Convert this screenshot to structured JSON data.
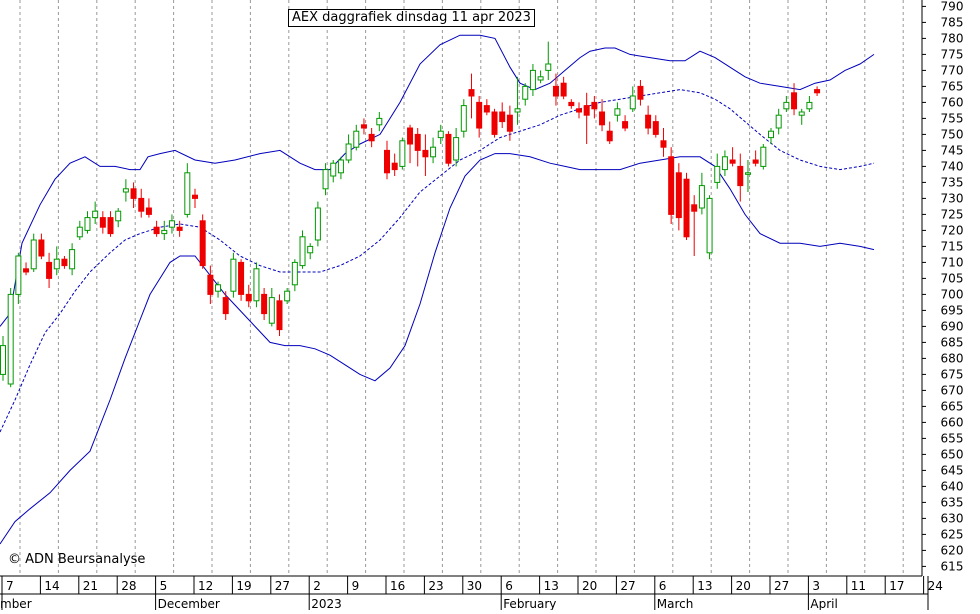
{
  "chart_data": {
    "type": "candlestick",
    "title": "AEX daggrafiek dinsdag 11 apr 2023",
    "copyright": "© ADN Beursanalyse",
    "ylim": [
      612,
      792
    ],
    "y_ticks": [
      615,
      620,
      625,
      630,
      635,
      640,
      645,
      650,
      655,
      660,
      665,
      670,
      675,
      680,
      685,
      690,
      695,
      700,
      705,
      710,
      715,
      720,
      725,
      730,
      735,
      740,
      745,
      750,
      755,
      760,
      765,
      770,
      775,
      780,
      785,
      790
    ],
    "x_day_ticks": [
      "7",
      "14",
      "21",
      "28",
      "5",
      "12",
      "19",
      "27",
      "2",
      "9",
      "16",
      "23",
      "30",
      "6",
      "13",
      "20",
      "27",
      "6",
      "13",
      "20",
      "27",
      "3",
      "11",
      "17",
      "24"
    ],
    "month_labels": [
      {
        "label": "mber",
        "tick_index": 0
      },
      {
        "label": "December",
        "tick_index": 4
      },
      {
        "label": "2023",
        "tick_index": 8
      },
      {
        "label": "February",
        "tick_index": 13
      },
      {
        "label": "March",
        "tick_index": 17
      },
      {
        "label": "April",
        "tick_index": 21
      }
    ],
    "up_color": "#009900",
    "down_color": "#ee0000",
    "band_color": "#0000bb",
    "candles": [
      {
        "o": 675,
        "h": 687,
        "l": 673,
        "c": 684
      },
      {
        "o": 672,
        "h": 702,
        "l": 671,
        "c": 700
      },
      {
        "o": 700,
        "h": 713,
        "l": 697,
        "c": 712
      },
      {
        "o": 708,
        "h": 710,
        "l": 706,
        "c": 707
      },
      {
        "o": 708,
        "h": 719,
        "l": 707,
        "c": 717
      },
      {
        "o": 717,
        "h": 719,
        "l": 711,
        "c": 712
      },
      {
        "o": 710,
        "h": 713,
        "l": 702,
        "c": 705
      },
      {
        "o": 708,
        "h": 715,
        "l": 706,
        "c": 711
      },
      {
        "o": 711,
        "h": 712,
        "l": 708,
        "c": 709
      },
      {
        "o": 708,
        "h": 716,
        "l": 706,
        "c": 714
      },
      {
        "o": 718,
        "h": 723,
        "l": 717,
        "c": 721
      },
      {
        "o": 720,
        "h": 726,
        "l": 719,
        "c": 724
      },
      {
        "o": 724,
        "h": 729,
        "l": 722,
        "c": 726
      },
      {
        "o": 724,
        "h": 726,
        "l": 719,
        "c": 721
      },
      {
        "o": 724,
        "h": 726,
        "l": 718,
        "c": 719
      },
      {
        "o": 723,
        "h": 727,
        "l": 721,
        "c": 726
      },
      {
        "o": 732,
        "h": 736,
        "l": 729,
        "c": 733
      },
      {
        "o": 733,
        "h": 735,
        "l": 727,
        "c": 730
      },
      {
        "o": 730,
        "h": 733,
        "l": 724,
        "c": 726
      },
      {
        "o": 727,
        "h": 730,
        "l": 724,
        "c": 725
      },
      {
        "o": 721,
        "h": 723,
        "l": 718,
        "c": 719
      },
      {
        "o": 719,
        "h": 723,
        "l": 717,
        "c": 720
      },
      {
        "o": 721,
        "h": 725,
        "l": 719,
        "c": 723
      },
      {
        "o": 721,
        "h": 723,
        "l": 718,
        "c": 720
      },
      {
        "o": 725,
        "h": 741,
        "l": 724,
        "c": 738
      },
      {
        "o": 731,
        "h": 733,
        "l": 727,
        "c": 730
      },
      {
        "o": 723,
        "h": 725,
        "l": 708,
        "c": 709
      },
      {
        "o": 706,
        "h": 709,
        "l": 697,
        "c": 700
      },
      {
        "o": 701,
        "h": 704,
        "l": 699,
        "c": 703
      },
      {
        "o": 699,
        "h": 701,
        "l": 692,
        "c": 694
      },
      {
        "o": 701,
        "h": 713,
        "l": 699,
        "c": 711
      },
      {
        "o": 710,
        "h": 711,
        "l": 698,
        "c": 700
      },
      {
        "o": 700,
        "h": 703,
        "l": 696,
        "c": 698
      },
      {
        "o": 698,
        "h": 710,
        "l": 696,
        "c": 708
      },
      {
        "o": 700,
        "h": 702,
        "l": 692,
        "c": 694
      },
      {
        "o": 691,
        "h": 702,
        "l": 690,
        "c": 699
      },
      {
        "o": 698,
        "h": 700,
        "l": 687,
        "c": 689
      },
      {
        "o": 698,
        "h": 702,
        "l": 697,
        "c": 701
      },
      {
        "o": 703,
        "h": 711,
        "l": 701,
        "c": 710
      },
      {
        "o": 709,
        "h": 720,
        "l": 708,
        "c": 718
      },
      {
        "o": 713,
        "h": 716,
        "l": 711,
        "c": 715
      },
      {
        "o": 717,
        "h": 729,
        "l": 715,
        "c": 727
      },
      {
        "o": 733,
        "h": 741,
        "l": 731,
        "c": 739
      },
      {
        "o": 737,
        "h": 742,
        "l": 735,
        "c": 741
      },
      {
        "o": 738,
        "h": 743,
        "l": 736,
        "c": 742
      },
      {
        "o": 742,
        "h": 750,
        "l": 741,
        "c": 747
      },
      {
        "o": 746,
        "h": 753,
        "l": 745,
        "c": 751
      },
      {
        "o": 753,
        "h": 755,
        "l": 750,
        "c": 752
      },
      {
        "o": 750,
        "h": 752,
        "l": 746,
        "c": 748
      },
      {
        "o": 753,
        "h": 757,
        "l": 751,
        "c": 755
      },
      {
        "o": 745,
        "h": 748,
        "l": 736,
        "c": 738
      },
      {
        "o": 741,
        "h": 744,
        "l": 737,
        "c": 739
      },
      {
        "o": 740,
        "h": 749,
        "l": 739,
        "c": 748
      },
      {
        "o": 752,
        "h": 753,
        "l": 741,
        "c": 747
      },
      {
        "o": 750,
        "h": 752,
        "l": 740,
        "c": 745
      },
      {
        "o": 745,
        "h": 750,
        "l": 737,
        "c": 743
      },
      {
        "o": 743,
        "h": 749,
        "l": 741,
        "c": 746
      },
      {
        "o": 749,
        "h": 753,
        "l": 747,
        "c": 751
      },
      {
        "o": 750,
        "h": 751,
        "l": 740,
        "c": 741
      },
      {
        "o": 742,
        "h": 752,
        "l": 740,
        "c": 749
      },
      {
        "o": 751,
        "h": 761,
        "l": 749,
        "c": 759
      },
      {
        "o": 764,
        "h": 769,
        "l": 755,
        "c": 762
      },
      {
        "o": 760,
        "h": 762,
        "l": 749,
        "c": 752
      },
      {
        "o": 759,
        "h": 761,
        "l": 756,
        "c": 757
      },
      {
        "o": 757,
        "h": 758,
        "l": 749,
        "c": 750
      },
      {
        "o": 757,
        "h": 760,
        "l": 752,
        "c": 754
      },
      {
        "o": 756,
        "h": 759,
        "l": 748,
        "c": 751
      },
      {
        "o": 757,
        "h": 768,
        "l": 753,
        "c": 758
      },
      {
        "o": 761,
        "h": 766,
        "l": 759,
        "c": 765
      },
      {
        "o": 764,
        "h": 772,
        "l": 762,
        "c": 770
      },
      {
        "o": 767,
        "h": 770,
        "l": 766,
        "c": 768
      },
      {
        "o": 770,
        "h": 779,
        "l": 767,
        "c": 772
      },
      {
        "o": 765,
        "h": 769,
        "l": 759,
        "c": 762
      },
      {
        "o": 766,
        "h": 768,
        "l": 761,
        "c": 762
      },
      {
        "o": 760,
        "h": 761,
        "l": 758,
        "c": 759
      },
      {
        "o": 758,
        "h": 760,
        "l": 755,
        "c": 757
      },
      {
        "o": 759,
        "h": 763,
        "l": 747,
        "c": 756
      },
      {
        "o": 760,
        "h": 762,
        "l": 755,
        "c": 758
      },
      {
        "o": 757,
        "h": 761,
        "l": 751,
        "c": 753
      },
      {
        "o": 751,
        "h": 754,
        "l": 747,
        "c": 748
      },
      {
        "o": 756,
        "h": 760,
        "l": 754,
        "c": 758
      },
      {
        "o": 754,
        "h": 756,
        "l": 751,
        "c": 752
      },
      {
        "o": 758,
        "h": 765,
        "l": 757,
        "c": 762
      },
      {
        "o": 765,
        "h": 767,
        "l": 759,
        "c": 761
      },
      {
        "o": 756,
        "h": 759,
        "l": 750,
        "c": 752
      },
      {
        "o": 754,
        "h": 756,
        "l": 749,
        "c": 750
      },
      {
        "o": 748,
        "h": 752,
        "l": 743,
        "c": 746
      },
      {
        "o": 743,
        "h": 746,
        "l": 722,
        "c": 725
      },
      {
        "o": 738,
        "h": 741,
        "l": 720,
        "c": 724
      },
      {
        "o": 736,
        "h": 738,
        "l": 717,
        "c": 718
      },
      {
        "o": 728,
        "h": 731,
        "l": 712,
        "c": 726
      },
      {
        "o": 727,
        "h": 738,
        "l": 725,
        "c": 734
      },
      {
        "o": 713,
        "h": 731,
        "l": 711,
        "c": 730
      },
      {
        "o": 735,
        "h": 744,
        "l": 733,
        "c": 740
      },
      {
        "o": 739,
        "h": 745,
        "l": 737,
        "c": 743
      },
      {
        "o": 742,
        "h": 746,
        "l": 740,
        "c": 741
      },
      {
        "o": 740,
        "h": 744,
        "l": 729,
        "c": 734
      },
      {
        "o": 738,
        "h": 742,
        "l": 732,
        "c": 738
      },
      {
        "o": 742,
        "h": 745,
        "l": 740,
        "c": 741
      },
      {
        "o": 740,
        "h": 747,
        "l": 739,
        "c": 746
      },
      {
        "o": 749,
        "h": 752,
        "l": 747,
        "c": 751
      },
      {
        "o": 752,
        "h": 758,
        "l": 750,
        "c": 756
      },
      {
        "o": 758,
        "h": 762,
        "l": 757,
        "c": 760
      },
      {
        "o": 763,
        "h": 766,
        "l": 756,
        "c": 758
      },
      {
        "o": 756,
        "h": 758,
        "l": 753,
        "c": 757
      },
      {
        "o": 758,
        "h": 762,
        "l": 757,
        "c": 760
      },
      {
        "o": 764,
        "h": 765,
        "l": 762,
        "c": 763
      }
    ],
    "bollinger": {
      "upper": [
        [
          0,
          690
        ],
        [
          10,
          694
        ],
        [
          22,
          716
        ],
        [
          40,
          728
        ],
        [
          55,
          736
        ],
        [
          70,
          741
        ],
        [
          85,
          743
        ],
        [
          100,
          740
        ],
        [
          115,
          740
        ],
        [
          130,
          739
        ],
        [
          140,
          739
        ],
        [
          148,
          743
        ],
        [
          160,
          744
        ],
        [
          175,
          745
        ],
        [
          195,
          742
        ],
        [
          215,
          741
        ],
        [
          235,
          742
        ],
        [
          260,
          744
        ],
        [
          280,
          745
        ],
        [
          300,
          741
        ],
        [
          315,
          739
        ],
        [
          330,
          739
        ],
        [
          345,
          744
        ],
        [
          360,
          747
        ],
        [
          380,
          750
        ],
        [
          400,
          760
        ],
        [
          420,
          772
        ],
        [
          440,
          778
        ],
        [
          460,
          781
        ],
        [
          480,
          781
        ],
        [
          495,
          780
        ],
        [
          510,
          771
        ],
        [
          520,
          766
        ],
        [
          535,
          764
        ],
        [
          550,
          766
        ],
        [
          565,
          770
        ],
        [
          580,
          774
        ],
        [
          590,
          776
        ],
        [
          605,
          777
        ],
        [
          615,
          777
        ],
        [
          630,
          775
        ],
        [
          650,
          774
        ],
        [
          670,
          773
        ],
        [
          685,
          773
        ],
        [
          700,
          776
        ],
        [
          715,
          774
        ],
        [
          730,
          771
        ],
        [
          745,
          768
        ],
        [
          760,
          766
        ],
        [
          780,
          765
        ],
        [
          800,
          764
        ],
        [
          815,
          766
        ],
        [
          830,
          767
        ],
        [
          845,
          770
        ],
        [
          860,
          772
        ],
        [
          874,
          775
        ]
      ],
      "middle": [
        [
          0,
          657
        ],
        [
          15,
          667
        ],
        [
          30,
          678
        ],
        [
          45,
          688
        ],
        [
          60,
          694
        ],
        [
          75,
          701
        ],
        [
          90,
          707
        ],
        [
          110,
          713
        ],
        [
          125,
          717
        ],
        [
          140,
          719
        ],
        [
          160,
          721
        ],
        [
          180,
          722
        ],
        [
          200,
          721
        ],
        [
          220,
          717
        ],
        [
          240,
          712
        ],
        [
          260,
          709
        ],
        [
          280,
          707
        ],
        [
          300,
          707
        ],
        [
          320,
          707
        ],
        [
          340,
          709
        ],
        [
          360,
          712
        ],
        [
          380,
          717
        ],
        [
          400,
          724
        ],
        [
          420,
          732
        ],
        [
          440,
          737
        ],
        [
          460,
          742
        ],
        [
          480,
          745
        ],
        [
          500,
          749
        ],
        [
          520,
          751
        ],
        [
          540,
          753
        ],
        [
          560,
          756
        ],
        [
          580,
          758
        ],
        [
          600,
          760
        ],
        [
          620,
          761
        ],
        [
          640,
          762
        ],
        [
          660,
          763
        ],
        [
          680,
          764
        ],
        [
          700,
          763
        ],
        [
          715,
          761
        ],
        [
          730,
          758
        ],
        [
          745,
          754
        ],
        [
          760,
          750
        ],
        [
          780,
          745
        ],
        [
          800,
          742
        ],
        [
          820,
          740
        ],
        [
          840,
          739
        ],
        [
          860,
          740
        ],
        [
          874,
          741
        ]
      ],
      "lower": [
        [
          0,
          622
        ],
        [
          15,
          629
        ],
        [
          30,
          633
        ],
        [
          50,
          638
        ],
        [
          70,
          645
        ],
        [
          90,
          651
        ],
        [
          110,
          667
        ],
        [
          125,
          680
        ],
        [
          140,
          692
        ],
        [
          150,
          700
        ],
        [
          160,
          705
        ],
        [
          170,
          710
        ],
        [
          180,
          712
        ],
        [
          195,
          712
        ],
        [
          210,
          706
        ],
        [
          225,
          700
        ],
        [
          240,
          695
        ],
        [
          255,
          690
        ],
        [
          270,
          685
        ],
        [
          285,
          684
        ],
        [
          300,
          684
        ],
        [
          315,
          683
        ],
        [
          330,
          681
        ],
        [
          345,
          678
        ],
        [
          360,
          675
        ],
        [
          375,
          673
        ],
        [
          390,
          677
        ],
        [
          405,
          684
        ],
        [
          420,
          697
        ],
        [
          435,
          713
        ],
        [
          450,
          727
        ],
        [
          465,
          737
        ],
        [
          480,
          742
        ],
        [
          495,
          744
        ],
        [
          510,
          744
        ],
        [
          530,
          743
        ],
        [
          550,
          741
        ],
        [
          565,
          740
        ],
        [
          580,
          739
        ],
        [
          600,
          739
        ],
        [
          620,
          739
        ],
        [
          640,
          741
        ],
        [
          660,
          742
        ],
        [
          680,
          743
        ],
        [
          700,
          743
        ],
        [
          715,
          740
        ],
        [
          730,
          733
        ],
        [
          745,
          725
        ],
        [
          760,
          719
        ],
        [
          780,
          716
        ],
        [
          800,
          716
        ],
        [
          820,
          715
        ],
        [
          840,
          716
        ],
        [
          860,
          715
        ],
        [
          874,
          714
        ]
      ]
    }
  }
}
